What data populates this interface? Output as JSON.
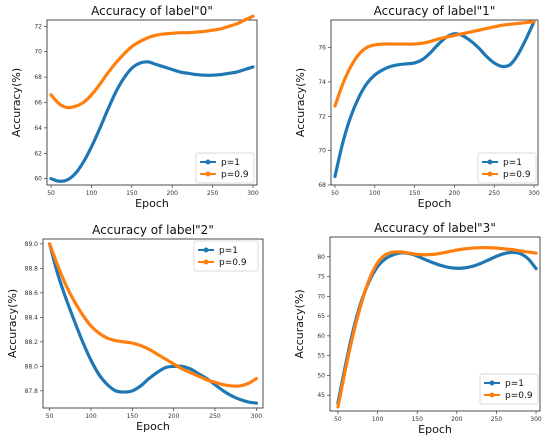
{
  "chart_data": [
    {
      "type": "line",
      "title": "Accuracy of label\"0\"",
      "xlabel": "Epoch",
      "ylabel": "Accuracy(%)",
      "xlim": [
        45,
        305
      ],
      "ylim": [
        59.5,
        72.5
      ],
      "xticks": [
        50,
        100,
        150,
        200,
        250,
        300
      ],
      "yticks": [
        60,
        62,
        64,
        66,
        68,
        70,
        72
      ],
      "ytick_labels": [
        "60",
        "62",
        "64",
        "66",
        "68",
        "70",
        "72"
      ],
      "legend": "lower-right",
      "series": [
        {
          "name": "p=1",
          "color": "#1f77b4",
          "x": [
            50,
            60,
            70,
            80,
            90,
            100,
            110,
            120,
            130,
            140,
            150,
            160,
            170,
            180,
            190,
            200,
            210,
            220,
            230,
            240,
            250,
            260,
            270,
            280,
            290,
            300
          ],
          "y": [
            60.0,
            59.8,
            59.9,
            60.4,
            61.3,
            62.5,
            63.9,
            65.4,
            66.8,
            67.9,
            68.7,
            69.1,
            69.2,
            69.0,
            68.8,
            68.6,
            68.4,
            68.3,
            68.2,
            68.15,
            68.15,
            68.2,
            68.3,
            68.4,
            68.6,
            68.8
          ]
        },
        {
          "name": "p=0.9",
          "color": "#ff7f0e",
          "x": [
            50,
            60,
            70,
            80,
            90,
            100,
            110,
            120,
            130,
            140,
            150,
            160,
            170,
            180,
            190,
            200,
            210,
            220,
            230,
            240,
            250,
            260,
            270,
            280,
            290,
            300
          ],
          "y": [
            66.6,
            65.9,
            65.6,
            65.7,
            66.0,
            66.6,
            67.4,
            68.3,
            69.1,
            69.8,
            70.4,
            70.8,
            71.1,
            71.3,
            71.4,
            71.45,
            71.5,
            71.5,
            71.55,
            71.6,
            71.7,
            71.8,
            72.0,
            72.2,
            72.5,
            72.8
          ]
        }
      ]
    },
    {
      "type": "line",
      "title": "Accuracy of label\"1\"",
      "xlabel": "Epoch",
      "ylabel": "Accuracy(%)",
      "xlim": [
        45,
        305
      ],
      "ylim": [
        68,
        77.6
      ],
      "xticks": [
        50,
        100,
        150,
        200,
        250,
        300
      ],
      "yticks": [
        68,
        70,
        72,
        74,
        76
      ],
      "ytick_labels": [
        "68",
        "70",
        "72",
        "74",
        "76"
      ],
      "legend": "lower-right",
      "series": [
        {
          "name": "p=1",
          "color": "#1f77b4",
          "x": [
            50,
            60,
            70,
            80,
            90,
            100,
            110,
            120,
            130,
            140,
            150,
            160,
            170,
            180,
            190,
            200,
            210,
            220,
            230,
            240,
            250,
            260,
            270,
            280,
            290,
            300
          ],
          "y": [
            68.5,
            70.5,
            72.0,
            73.1,
            73.9,
            74.4,
            74.7,
            74.9,
            75.0,
            75.05,
            75.1,
            75.3,
            75.7,
            76.2,
            76.6,
            76.8,
            76.7,
            76.4,
            76.0,
            75.5,
            75.1,
            74.9,
            75.0,
            75.6,
            76.5,
            77.5
          ]
        },
        {
          "name": "p=0.9",
          "color": "#ff7f0e",
          "x": [
            50,
            60,
            70,
            80,
            90,
            100,
            110,
            120,
            130,
            140,
            150,
            160,
            170,
            180,
            190,
            200,
            210,
            220,
            230,
            240,
            250,
            260,
            270,
            280,
            290,
            300
          ],
          "y": [
            72.6,
            73.9,
            74.9,
            75.6,
            76.0,
            76.15,
            76.2,
            76.2,
            76.2,
            76.2,
            76.2,
            76.25,
            76.35,
            76.5,
            76.6,
            76.7,
            76.8,
            76.9,
            77.0,
            77.1,
            77.2,
            77.3,
            77.35,
            77.4,
            77.45,
            77.5
          ]
        }
      ]
    },
    {
      "type": "line",
      "title": "Accuracy of label\"2\"",
      "xlabel": "Epoch",
      "ylabel": "Accuracy(%)",
      "xlim": [
        42,
        308
      ],
      "ylim": [
        87.66,
        89.04
      ],
      "xticks": [
        50,
        100,
        150,
        200,
        250,
        300
      ],
      "yticks": [
        87.8,
        88.0,
        88.2,
        88.4,
        88.6,
        88.8,
        89.0
      ],
      "ytick_labels": [
        "87.8",
        "88.0",
        "88.2",
        "88.4",
        "88.6",
        "88.8",
        "89.0"
      ],
      "legend": "top-right",
      "series": [
        {
          "name": "p=1",
          "color": "#1f77b4",
          "x": [
            50,
            60,
            70,
            80,
            90,
            100,
            110,
            120,
            130,
            140,
            150,
            160,
            170,
            180,
            190,
            200,
            210,
            220,
            230,
            240,
            250,
            260,
            270,
            280,
            290,
            300
          ],
          "y": [
            89.0,
            88.75,
            88.55,
            88.37,
            88.2,
            88.05,
            87.93,
            87.85,
            87.8,
            87.79,
            87.8,
            87.84,
            87.9,
            87.95,
            87.99,
            88.0,
            88.0,
            87.98,
            87.94,
            87.9,
            87.85,
            87.8,
            87.76,
            87.73,
            87.71,
            87.7
          ]
        },
        {
          "name": "p=0.9",
          "color": "#ff7f0e",
          "x": [
            50,
            60,
            70,
            80,
            90,
            100,
            110,
            120,
            130,
            140,
            150,
            160,
            170,
            180,
            190,
            200,
            210,
            220,
            230,
            240,
            250,
            260,
            270,
            280,
            290,
            300
          ],
          "y": [
            89.0,
            88.82,
            88.66,
            88.53,
            88.42,
            88.33,
            88.27,
            88.23,
            88.21,
            88.2,
            88.19,
            88.17,
            88.14,
            88.1,
            88.06,
            88.02,
            87.98,
            87.95,
            87.92,
            87.89,
            87.87,
            87.85,
            87.84,
            87.84,
            87.86,
            87.9
          ]
        }
      ]
    },
    {
      "type": "line",
      "title": "Accuracy of label\"3\"",
      "xlabel": "Epoch",
      "ylabel": "Accuracy(%)",
      "xlim": [
        40,
        305
      ],
      "ylim": [
        41,
        85
      ],
      "xticks": [
        50,
        100,
        150,
        200,
        250,
        300
      ],
      "yticks": [
        45,
        50,
        55,
        60,
        65,
        70,
        75,
        80
      ],
      "ytick_labels": [
        "45",
        "50",
        "55",
        "60",
        "65",
        "70",
        "75",
        "80"
      ],
      "legend": "lower-right",
      "series": [
        {
          "name": "p=1",
          "color": "#1f77b4",
          "x": [
            50,
            60,
            70,
            80,
            90,
            100,
            110,
            120,
            130,
            140,
            150,
            160,
            170,
            180,
            190,
            200,
            210,
            220,
            230,
            240,
            250,
            260,
            270,
            280,
            290,
            300
          ],
          "y": [
            43,
            53,
            62,
            69,
            74,
            77.5,
            79.5,
            80.5,
            81,
            80.8,
            80.2,
            79.3,
            78.5,
            77.8,
            77.3,
            77.1,
            77.2,
            77.6,
            78.3,
            79.2,
            80.1,
            80.8,
            81.1,
            80.8,
            79.5,
            77
          ]
        },
        {
          "name": "p=0.9",
          "color": "#ff7f0e",
          "x": [
            50,
            60,
            70,
            80,
            90,
            100,
            110,
            120,
            130,
            140,
            150,
            160,
            170,
            180,
            190,
            200,
            210,
            220,
            230,
            240,
            250,
            260,
            270,
            280,
            290,
            300
          ],
          "y": [
            42,
            52,
            61,
            68.5,
            74.5,
            78.5,
            80.5,
            81.2,
            81.2,
            80.9,
            80.6,
            80.5,
            80.6,
            80.9,
            81.3,
            81.7,
            82,
            82.2,
            82.3,
            82.3,
            82.2,
            82,
            81.8,
            81.5,
            81.2,
            80.9
          ]
        }
      ]
    }
  ]
}
